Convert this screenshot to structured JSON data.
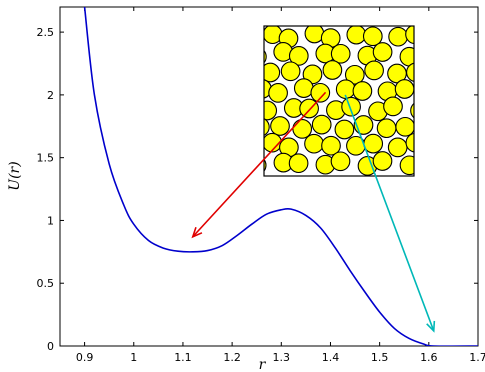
{
  "chart_data": {
    "type": "line",
    "xlabel": "r",
    "ylabel": "U(r)",
    "xlim": [
      0.85,
      1.7
    ],
    "ylim": [
      0,
      2.7
    ],
    "xticks": [
      "0.9",
      "1",
      "1.1",
      "1.2",
      "1.3",
      "1.4",
      "1.5",
      "1.6",
      "1.7"
    ],
    "yticks": [
      "0",
      "0.5",
      "1",
      "1.5",
      "2",
      "2.5"
    ],
    "grid": false,
    "series": [
      {
        "color": "#0000cc",
        "x": [
          0.9,
          0.92,
          0.95,
          0.98,
          1.0,
          1.03,
          1.06,
          1.09,
          1.12,
          1.15,
          1.18,
          1.21,
          1.24,
          1.27,
          1.3,
          1.32,
          1.35,
          1.38,
          1.41,
          1.44,
          1.47,
          1.5,
          1.53,
          1.56,
          1.59,
          1.61,
          1.7
        ],
        "y": [
          2.7,
          2.0,
          1.45,
          1.12,
          0.97,
          0.84,
          0.78,
          0.755,
          0.75,
          0.76,
          0.8,
          0.88,
          0.97,
          1.05,
          1.085,
          1.09,
          1.04,
          0.94,
          0.78,
          0.6,
          0.43,
          0.27,
          0.14,
          0.06,
          0.015,
          0.0,
          0.0
        ]
      }
    ],
    "annotations": [
      {
        "type": "arrow",
        "color": "#e00000",
        "from": [
          1.39,
          2.02
        ],
        "to": [
          1.12,
          0.87
        ]
      },
      {
        "type": "arrow",
        "color": "#00b8b8",
        "from": [
          1.43,
          2.0
        ],
        "to": [
          1.61,
          0.12
        ]
      }
    ],
    "inset": {
      "type": "image",
      "content": "2D packing of yellow disks",
      "fill_color": "#ffff00",
      "edge_color": "#000000",
      "x_range": [
        1.28,
        1.57
      ],
      "y_range": [
        1.37,
        2.57
      ]
    }
  }
}
